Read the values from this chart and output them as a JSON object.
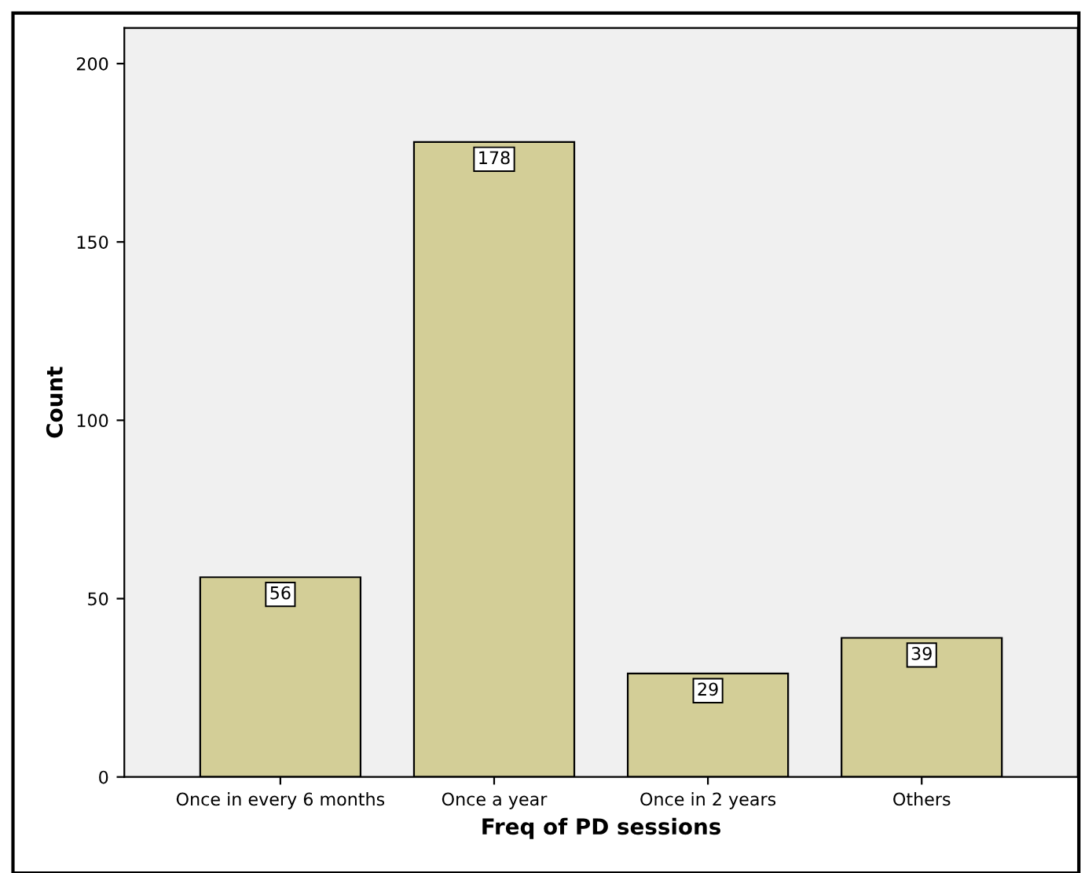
{
  "chart_data": {
    "type": "bar",
    "xlabel": "Freq of PD sessions",
    "ylabel": "Count",
    "categories": [
      "Once in every 6 months",
      "Once a year",
      "Once in 2 years",
      "Others"
    ],
    "values": [
      56,
      178,
      29,
      39
    ],
    "color": "#d3ce97",
    "ylim": [
      0,
      210
    ],
    "yticks": [
      0,
      50,
      100,
      150,
      200
    ],
    "grid": false,
    "data_labels": true
  }
}
